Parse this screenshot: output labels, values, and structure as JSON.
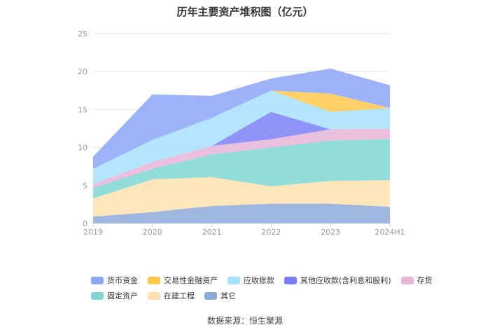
{
  "title": "历年主要资产堆积图（亿元）",
  "source": "数据来源：恒生聚源",
  "chart_data": {
    "type": "area",
    "stacked": true,
    "title": "历年主要资产堆积图（亿元）",
    "categories": [
      "2019",
      "2020",
      "2021",
      "2022",
      "2023",
      "2024H1"
    ],
    "y_ticks": [
      "0",
      "5",
      "10",
      "15",
      "20",
      "25"
    ],
    "ylim": [
      0,
      25
    ],
    "grid": true,
    "legend_position": "bottom",
    "series": [
      {
        "name": "其它",
        "color": "#8eaadb",
        "values": [
          0.9,
          1.5,
          2.3,
          2.6,
          2.6,
          2.2
        ]
      },
      {
        "name": "在建工程",
        "color": "#fde1b0",
        "values": [
          2.4,
          4.3,
          3.8,
          2.3,
          3.0,
          3.5
        ]
      },
      {
        "name": "固定资产",
        "color": "#7fd6d4",
        "values": [
          1.4,
          1.4,
          3.0,
          5.1,
          5.3,
          5.4
        ]
      },
      {
        "name": "存货",
        "color": "#e8b4d8",
        "values": [
          0.5,
          0.9,
          1.1,
          1.1,
          1.5,
          1.4
        ]
      },
      {
        "name": "其他应收款(含利息和股利)",
        "color": "#7b7ff5",
        "values": [
          0.0,
          0.0,
          0.0,
          3.6,
          0.0,
          0.0
        ]
      },
      {
        "name": "应收账款",
        "color": "#a6e1fb",
        "values": [
          2.0,
          2.9,
          3.7,
          2.8,
          2.3,
          2.7
        ]
      },
      {
        "name": "交易性金融资产",
        "color": "#ffc84d",
        "values": [
          0.0,
          0.0,
          0.0,
          0.0,
          2.4,
          0.0
        ]
      },
      {
        "name": "货币资金",
        "color": "#8ca5f7",
        "values": [
          1.6,
          6.0,
          2.9,
          1.6,
          3.3,
          3.0
        ]
      }
    ]
  },
  "legend_rows": [
    [
      0,
      1,
      2,
      3,
      4
    ],
    [
      5,
      6,
      7
    ]
  ],
  "legend_order": [
    7,
    6,
    5,
    4,
    3,
    2,
    1,
    0
  ]
}
